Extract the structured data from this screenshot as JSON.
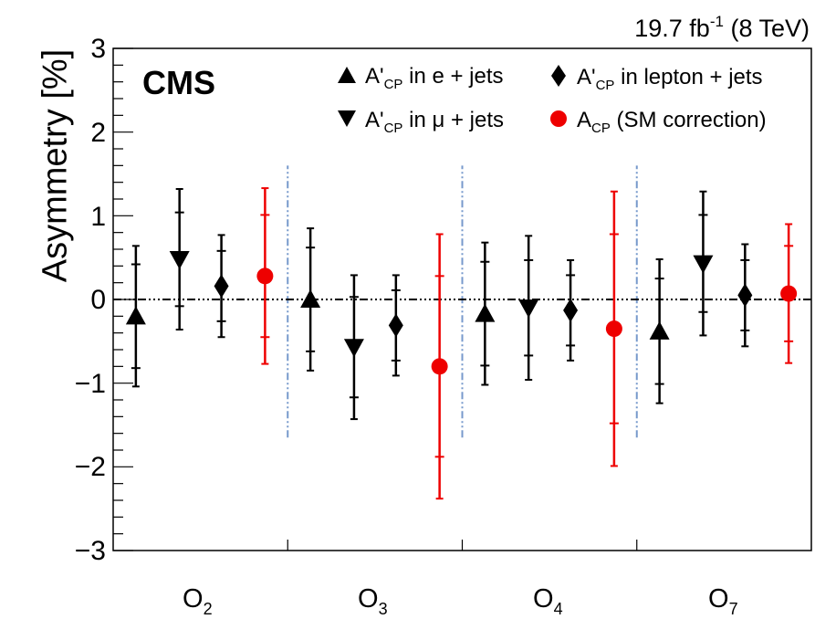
{
  "chart_data": {
    "type": "scatter",
    "title": "",
    "annotation_top_right": {
      "value": "19.7 fb",
      "superscript": "-1",
      "suffix": "(8 TeV)"
    },
    "experiment_label": "CMS",
    "ylabel": "Asymmetry [%]",
    "ylim": [
      -3,
      3
    ],
    "yticks": [
      "−3",
      "−2",
      "−1",
      "0",
      "1",
      "2",
      "3"
    ],
    "categories": [
      {
        "base": "O",
        "sub": "2"
      },
      {
        "base": "O",
        "sub": "3"
      },
      {
        "base": "O",
        "sub": "4"
      },
      {
        "base": "O",
        "sub": "7"
      }
    ],
    "grid": false,
    "reference_line_y": 0,
    "legend_position": "top-right",
    "series": [
      {
        "name": "A'CP in e + jets",
        "legend": {
          "pre": "A'",
          "sub": "CP",
          "post": " in e + jets"
        },
        "marker": "triangle-up",
        "color": "#000000",
        "values": [
          -0.2,
          0.0,
          -0.17,
          -0.38
        ],
        "stat_err": [
          0.62,
          0.62,
          0.62,
          0.63
        ],
        "total_err": [
          0.84,
          0.85,
          0.85,
          0.86
        ]
      },
      {
        "name": "A'CP in mu + jets",
        "legend": {
          "pre": "A'",
          "sub": "CP",
          "post": " in μ + jets"
        },
        "marker": "triangle-down",
        "color": "#000000",
        "values": [
          0.48,
          -0.57,
          -0.1,
          0.43
        ],
        "stat_err": [
          0.56,
          0.6,
          0.57,
          0.58
        ],
        "total_err": [
          0.84,
          0.86,
          0.86,
          0.86
        ]
      },
      {
        "name": "A'CP in lepton + jets",
        "legend": {
          "pre": "A'",
          "sub": "CP",
          "post": " in lepton + jets"
        },
        "marker": "diamond",
        "color": "#000000",
        "values": [
          0.16,
          -0.31,
          -0.13,
          0.05
        ],
        "stat_err": [
          0.42,
          0.42,
          0.42,
          0.42
        ],
        "total_err": [
          0.61,
          0.6,
          0.6,
          0.61
        ]
      },
      {
        "name": "ACP (SM correction)",
        "legend": {
          "pre": "A",
          "sub": "CP",
          "post": " (SM correction)"
        },
        "marker": "circle",
        "color": "#ee0000",
        "values": [
          0.28,
          -0.8,
          -0.35,
          0.07
        ],
        "stat_err": [
          0.73,
          1.08,
          1.13,
          0.57
        ],
        "total_err": [
          1.05,
          1.58,
          1.64,
          0.83
        ]
      }
    ],
    "separators": {
      "between_categories": true,
      "y_range": [
        -1.65,
        1.6
      ],
      "color": "#7799cc"
    }
  }
}
